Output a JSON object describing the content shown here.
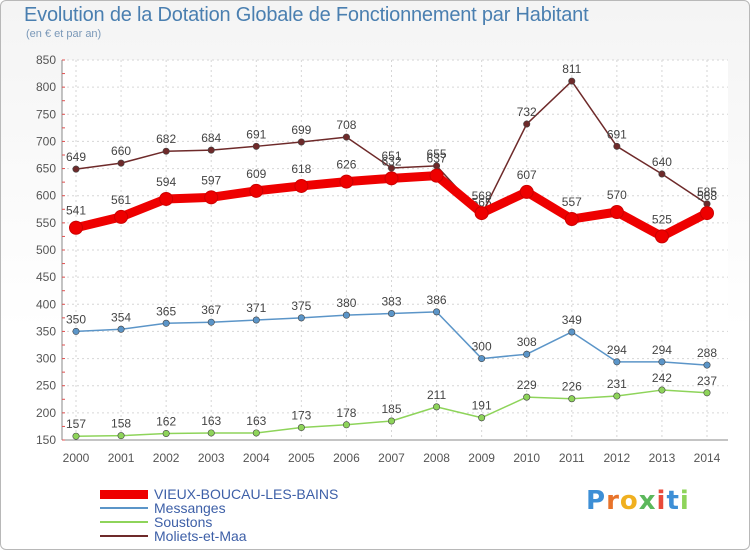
{
  "header": {
    "title": "Evolution de la Dotation Globale de Fonctionnement par Habitant",
    "subtitle": "(en € et par an)"
  },
  "chart_data": {
    "type": "line",
    "title": "Evolution de la Dotation Globale de Fonctionnement par Habitant",
    "subtitle": "(en € et par an)",
    "xlabel": "",
    "ylabel": "",
    "ylim": [
      150,
      850
    ],
    "yticks": [
      150,
      200,
      250,
      300,
      350,
      400,
      450,
      500,
      550,
      600,
      650,
      700,
      750,
      800,
      850
    ],
    "categories": [
      "2000",
      "2001",
      "2002",
      "2003",
      "2004",
      "2005",
      "2006",
      "2007",
      "2008",
      "2009",
      "2010",
      "2011",
      "2012",
      "2013",
      "2014"
    ],
    "grid": true,
    "legend_position": "bottom-left",
    "series": [
      {
        "name": "Moliets-et-Maa",
        "color": "#6e2a2a",
        "values": [
          649,
          660,
          682,
          684,
          691,
          699,
          708,
          651,
          655,
          565,
          732,
          811,
          691,
          640,
          585
        ]
      },
      {
        "name": "Messanges",
        "color": "#5b95c8",
        "values": [
          350,
          354,
          365,
          367,
          371,
          375,
          380,
          383,
          386,
          300,
          308,
          349,
          294,
          294,
          288
        ]
      },
      {
        "name": "Soustons",
        "color": "#8ed45a",
        "values": [
          157,
          158,
          162,
          163,
          163,
          173,
          178,
          185,
          211,
          191,
          229,
          226,
          231,
          242,
          237
        ]
      },
      {
        "name": "VIEUX-BOUCAU-LES-BAINS",
        "color": "#ee0000",
        "values": [
          541,
          561,
          594,
          597,
          609,
          618,
          626,
          632,
          637,
          568,
          607,
          557,
          570,
          525,
          568
        ]
      }
    ],
    "legend": [
      "VIEUX-BOUCAU-LES-BAINS",
      "Messanges",
      "Soustons",
      "Moliets-et-Maa"
    ]
  },
  "logo": {
    "letters": [
      "P",
      "r",
      "o",
      "x",
      "i",
      "t",
      "i"
    ],
    "colors": [
      "#3d8fd6",
      "#e8732a",
      "#f0b020",
      "#5cb85c",
      "#e84a3a",
      "#3d8fd6",
      "#8ed45a"
    ]
  }
}
